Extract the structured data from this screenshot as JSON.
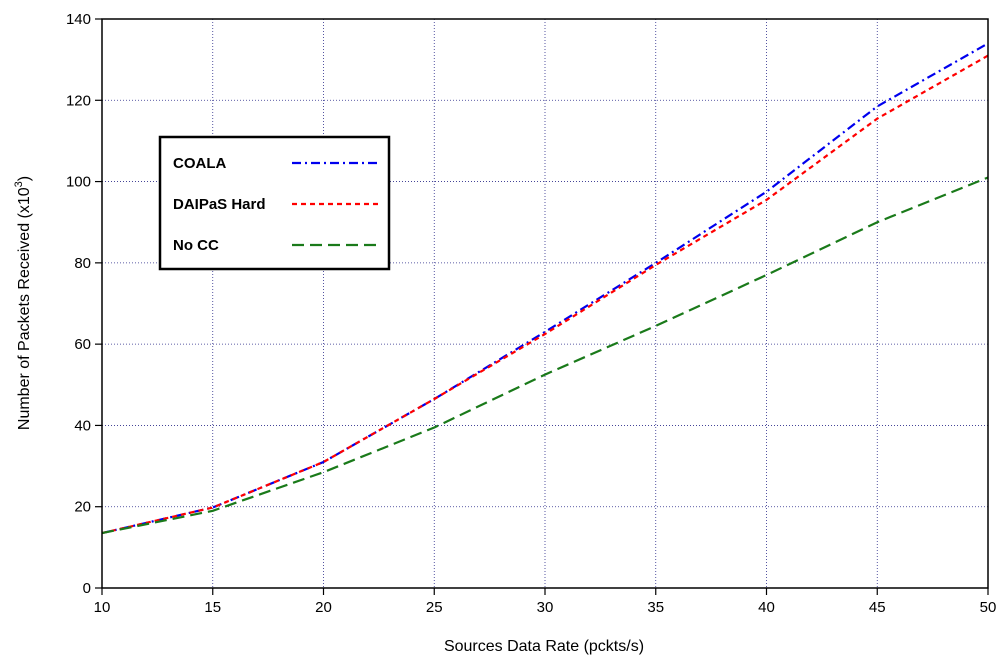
{
  "chart_data": {
    "type": "line",
    "xlabel": "Sources Data Rate (pckts/s)",
    "ylabel": "Number of Packets Received (x10",
    "ylabel_superscript": "3",
    "ylabel_suffix": ")",
    "xlim": [
      10,
      50
    ],
    "ylim": [
      0,
      140
    ],
    "x_ticks": [
      10,
      15,
      20,
      25,
      30,
      35,
      40,
      45,
      50
    ],
    "y_ticks": [
      0,
      20,
      40,
      60,
      80,
      100,
      120,
      140
    ],
    "grid": true,
    "legend_position": "upper-left",
    "x": [
      10,
      15,
      20,
      25,
      30,
      35,
      40,
      45,
      50
    ],
    "series": [
      {
        "name": "COALA",
        "color": "#0000ee",
        "style": "dash-dot",
        "values": [
          13.5,
          19.8,
          31.0,
          46.5,
          63.0,
          80.0,
          97.5,
          118.5,
          134.0
        ]
      },
      {
        "name": "DAIPaS Hard",
        "color": "#ff0000",
        "style": "short-dash",
        "values": [
          13.5,
          19.8,
          31.0,
          46.5,
          62.5,
          79.5,
          95.5,
          115.5,
          131.0
        ]
      },
      {
        "name": "No CC",
        "color": "#1a7a1a",
        "style": "long-dash",
        "values": [
          13.5,
          19.0,
          28.5,
          39.5,
          52.5,
          64.5,
          77.0,
          90.0,
          101.0
        ]
      }
    ]
  }
}
